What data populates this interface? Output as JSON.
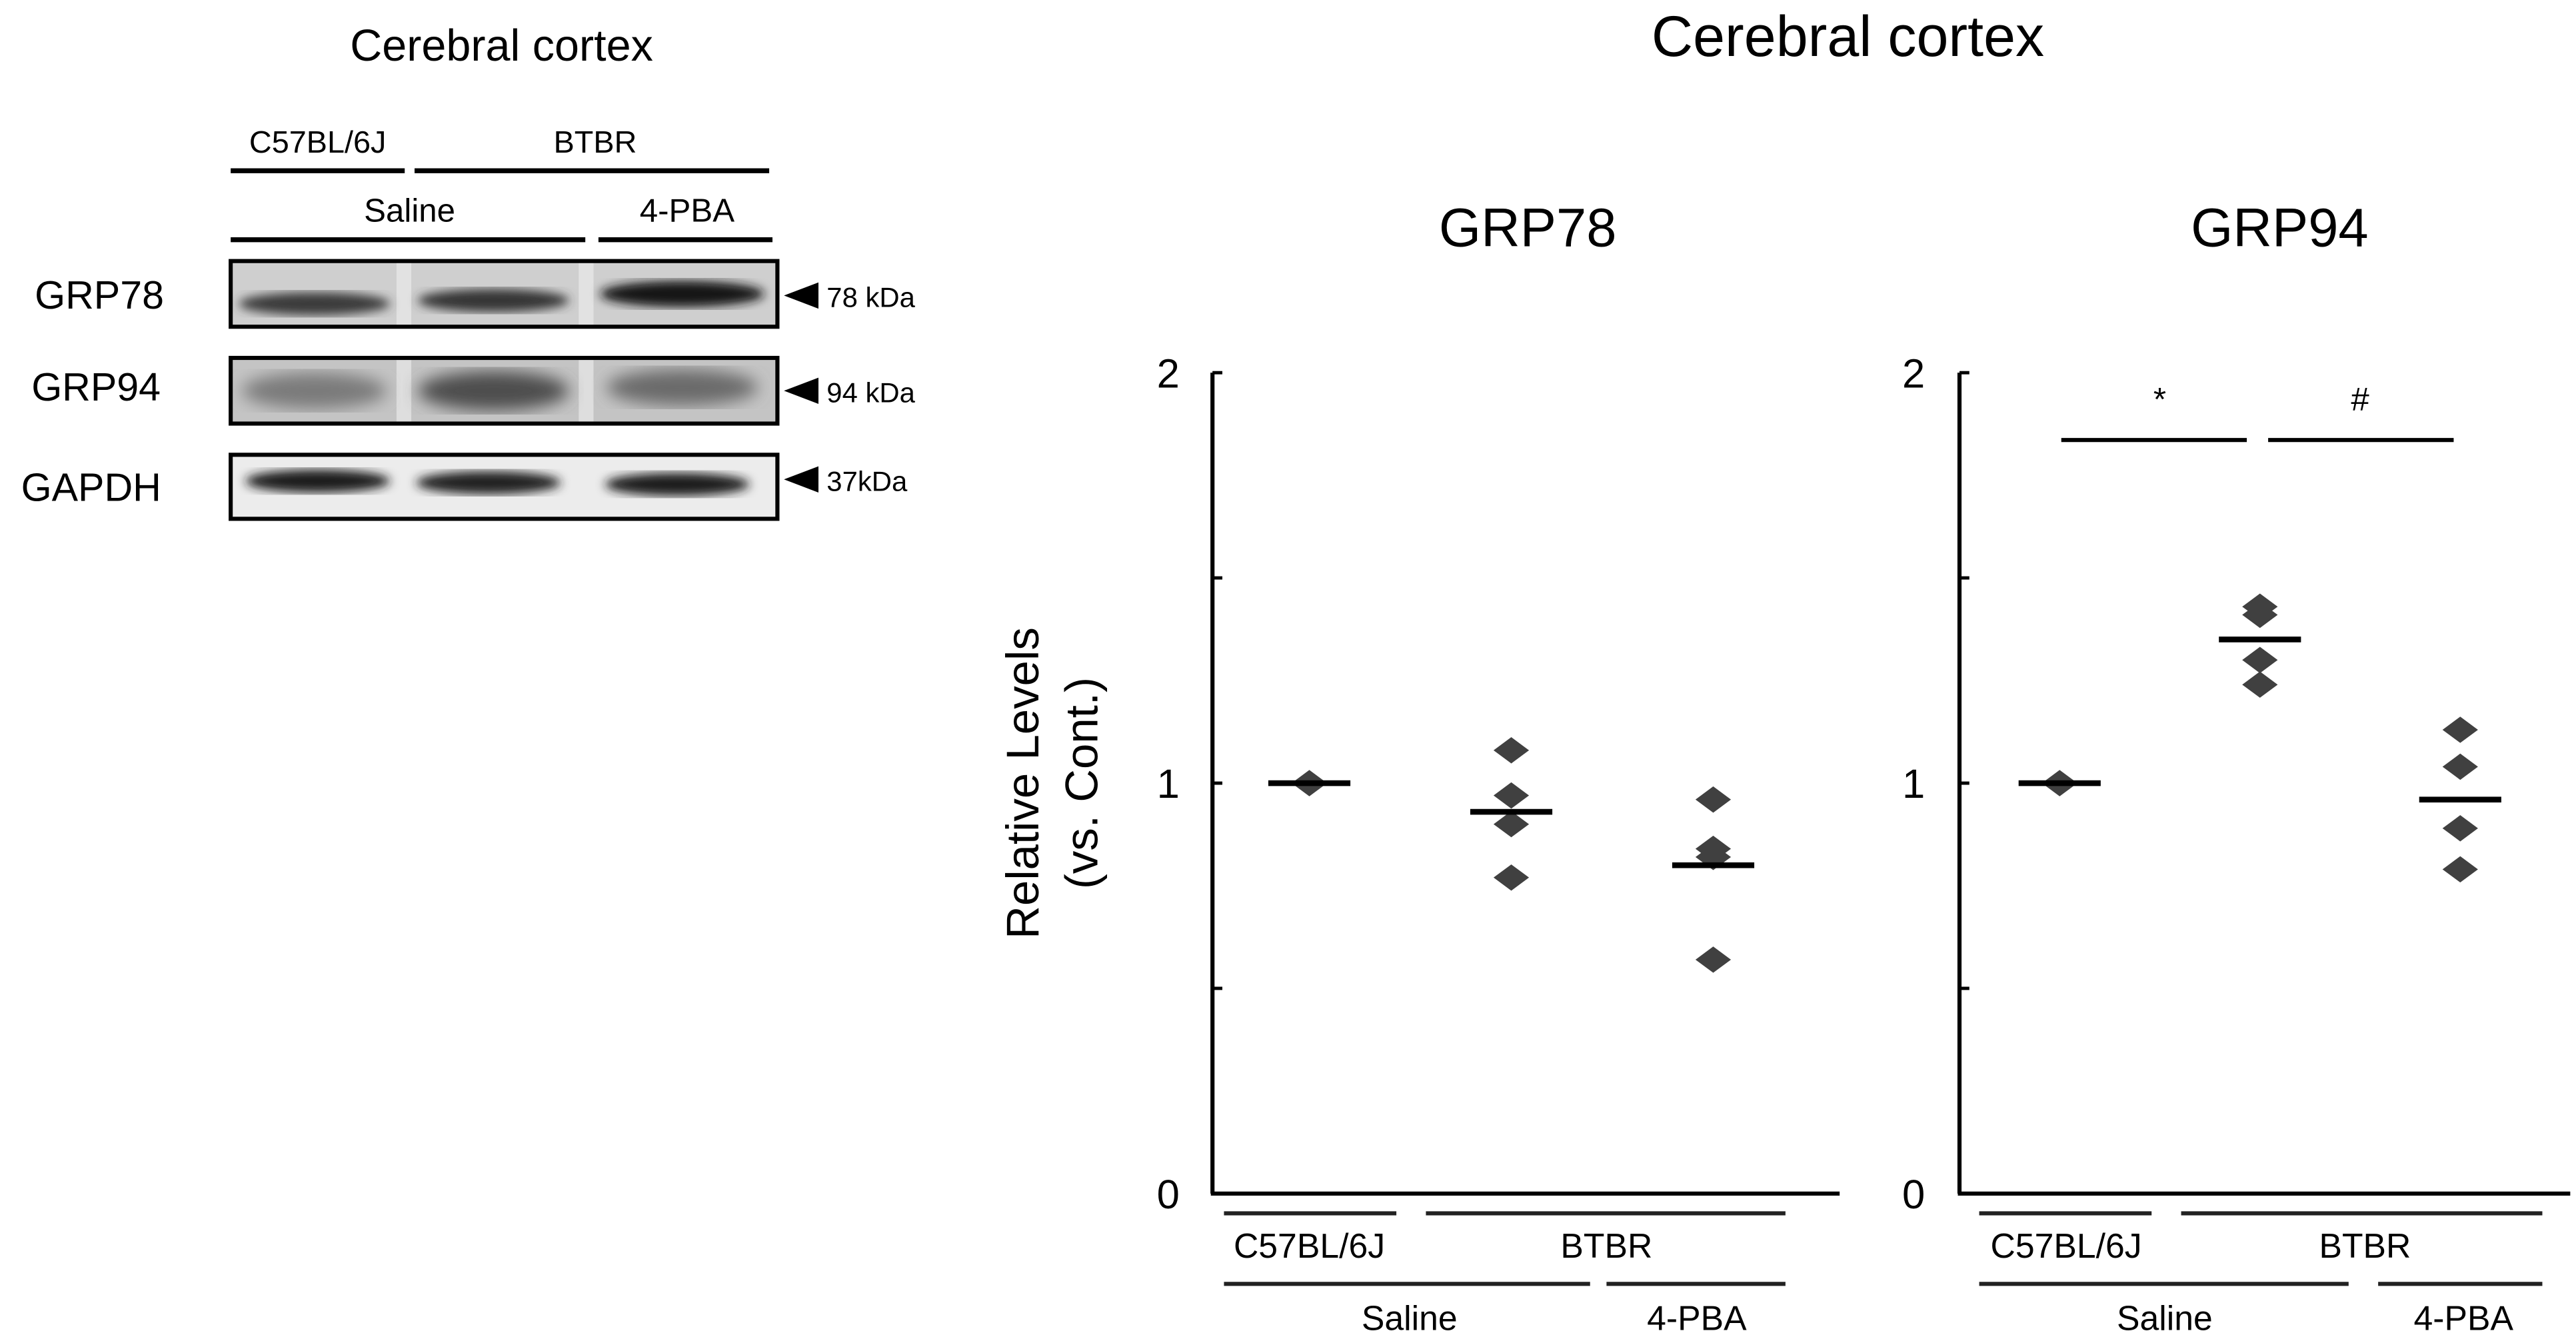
{
  "blot": {
    "title": "Cerebral cortex",
    "strain_labels": [
      "C57BL/6J",
      "BTBR"
    ],
    "treatment_labels": [
      "Saline",
      "4-PBA"
    ],
    "rows": [
      {
        "label": "GRP78",
        "marker": "78 kDa"
      },
      {
        "label": "GRP94",
        "marker": "94 kDa"
      },
      {
        "label": "GAPDH",
        "marker": "37kDa"
      }
    ]
  },
  "chart_data": {
    "title": "Cerebral cortex",
    "ylabel_line1": "Relative Levels",
    "ylabel_line2": "(vs. Cont.)",
    "ylim": [
      0,
      2
    ],
    "yticks": [
      "0",
      "1",
      "2"
    ],
    "categories": [
      "C57BL/6J Saline",
      "BTBR Saline",
      "BTBR 4-PBA"
    ],
    "strain_labels": [
      "C57BL/6J",
      "BTBR"
    ],
    "treatment_labels": [
      "Saline",
      "4-PBA"
    ],
    "marker_color": "#404040",
    "panels": [
      {
        "type": "scatter",
        "title": "GRP78",
        "groups": [
          {
            "points": [
              1.0
            ],
            "mean": 1.0
          },
          {
            "points": [
              1.08,
              0.97,
              0.9,
              0.77
            ],
            "mean": 0.93
          },
          {
            "points": [
              0.96,
              0.84,
              0.82,
              0.57
            ],
            "mean": 0.8
          }
        ],
        "significance": []
      },
      {
        "type": "scatter",
        "title": "GRP94",
        "groups": [
          {
            "points": [
              1.0
            ],
            "mean": 1.0
          },
          {
            "points": [
              1.43,
              1.41,
              1.3,
              1.24
            ],
            "mean": 1.35
          },
          {
            "points": [
              1.13,
              1.04,
              0.89,
              0.79
            ],
            "mean": 0.96
          }
        ],
        "significance": [
          {
            "from": 0,
            "to": 1,
            "symbol": "*"
          },
          {
            "from": 1,
            "to": 2,
            "symbol": "#"
          }
        ]
      }
    ]
  }
}
